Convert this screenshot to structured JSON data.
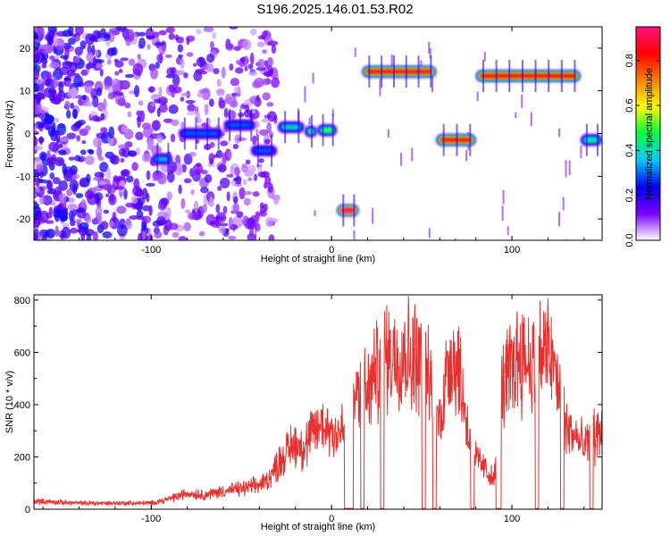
{
  "title": "S196.2025.146.01.53.R02",
  "chart_data": [
    {
      "type": "heatmap",
      "xlabel": "Height of straight line (km)",
      "ylabel": "Frequency (Hz)",
      "xlim": [
        -165,
        150
      ],
      "ylim": [
        -25,
        25
      ],
      "xticks": [
        -100,
        0,
        100
      ],
      "yticks": [
        -20,
        -10,
        0,
        10,
        20
      ],
      "colorbar": {
        "label": "Normalized spectral amplitude",
        "range": [
          0,
          0.95
        ],
        "ticks": [
          0,
          0.2,
          0.4,
          0.6,
          0.8
        ],
        "tick_labels": [
          "0.0",
          "0.2",
          "0.4",
          "0.6",
          "0.8"
        ],
        "colors": [
          "#ffffff",
          "#7a00ff",
          "#0000ff",
          "#00c8ff",
          "#00ff40",
          "#ffff00",
          "#ff8000",
          "#ff0000",
          "#ff1080"
        ]
      },
      "segments": [
        {
          "x": [
            -100,
            -88
          ],
          "freq": -6,
          "amp": 0.35
        },
        {
          "x": [
            -85,
            -60
          ],
          "freq": 0,
          "amp": 0.3
        },
        {
          "x": [
            -60,
            -42
          ],
          "freq": 2,
          "amp": 0.3
        },
        {
          "x": [
            -45,
            -30
          ],
          "freq": -4,
          "amp": 0.3
        },
        {
          "x": [
            -30,
            -15
          ],
          "freq": 1.5,
          "amp": 0.4
        },
        {
          "x": [
            -15,
            -8
          ],
          "freq": 0.5,
          "amp": 0.5
        },
        {
          "x": [
            -8,
            3
          ],
          "freq": 0.8,
          "amp": 0.5
        },
        {
          "x": [
            3,
            15
          ],
          "freq": -18,
          "amp": 0.95
        },
        {
          "x": [
            17,
            58
          ],
          "freq": 14.5,
          "amp": 0.85
        },
        {
          "x": [
            58,
            80
          ],
          "freq": -1.5,
          "amp": 0.85
        },
        {
          "x": [
            80,
            138
          ],
          "freq": 13.5,
          "amp": 0.85
        },
        {
          "x": [
            138,
            150
          ],
          "freq": -1.5,
          "amp": 0.45
        }
      ]
    },
    {
      "type": "line",
      "xlabel": "Height of straight line (km)",
      "ylabel": "SNR (10 * v/v)",
      "xlim": [
        -165,
        150
      ],
      "ylim": [
        0,
        820
      ],
      "xticks": [
        -100,
        0,
        100
      ],
      "yticks": [
        0,
        200,
        400,
        600,
        800
      ],
      "color": "#e8302e",
      "envelope": {
        "x": [
          -165,
          -140,
          -120,
          -100,
          -90,
          -80,
          -70,
          -60,
          -50,
          -40,
          -35,
          -30,
          -25,
          -20,
          -15,
          -10,
          -5,
          0,
          5,
          10,
          15,
          20,
          25,
          30,
          35,
          40,
          45,
          50,
          55,
          60,
          65,
          70,
          75,
          80,
          85,
          90,
          95,
          100,
          105,
          110,
          115,
          120,
          125,
          130,
          135,
          140,
          145,
          150
        ],
        "y": [
          40,
          30,
          30,
          30,
          50,
          80,
          70,
          90,
          100,
          120,
          150,
          220,
          280,
          330,
          300,
          380,
          420,
          390,
          380,
          420,
          600,
          560,
          690,
          760,
          770,
          780,
          760,
          750,
          600,
          420,
          750,
          740,
          420,
          250,
          200,
          140,
          620,
          700,
          780,
          720,
          760,
          780,
          640,
          400,
          360,
          300,
          360,
          380
        ]
      },
      "gaps_x": [
        [
          7,
          12
        ],
        [
          16,
          18
        ],
        [
          27,
          29
        ],
        [
          50,
          52
        ],
        [
          56,
          58
        ],
        [
          77,
          79
        ],
        [
          91,
          94
        ],
        [
          113,
          115
        ],
        [
          127,
          129
        ],
        [
          143,
          145
        ]
      ]
    }
  ]
}
